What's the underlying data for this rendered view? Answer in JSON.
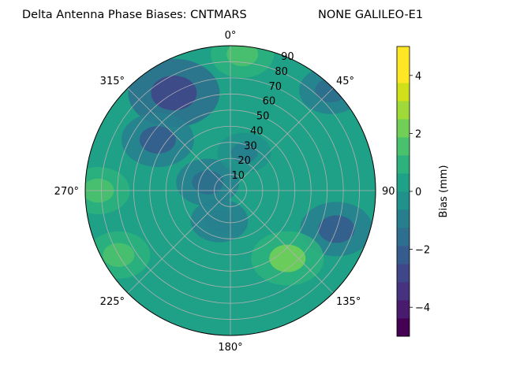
{
  "chart_data": {
    "type": "polar-contour",
    "title": "Delta Antenna Phase Biases: CNTMARS",
    "subtitle": "NONE GALILEO-E1",
    "angular_ticks": [
      {
        "deg": 0,
        "label": "0°"
      },
      {
        "deg": 45,
        "label": "45°"
      },
      {
        "deg": 90,
        "label": "90"
      },
      {
        "deg": 135,
        "label": "135°"
      },
      {
        "deg": 180,
        "label": "180°"
      },
      {
        "deg": 225,
        "label": "225°"
      },
      {
        "deg": 270,
        "label": "270°"
      },
      {
        "deg": 315,
        "label": "315°"
      }
    ],
    "radial_range": [
      0,
      90
    ],
    "radial_ticks": [
      10,
      20,
      30,
      40,
      50,
      60,
      70,
      80,
      90
    ],
    "grid": true,
    "colorbar": {
      "label": "Bias (mm)",
      "range": [
        -5,
        5
      ],
      "ticks": [
        -4,
        -2,
        0,
        2,
        4
      ],
      "levels": [
        -5,
        -4.375,
        -3.75,
        -3.125,
        -2.5,
        -1.875,
        -1.25,
        -0.625,
        0,
        0.625,
        1.25,
        1.875,
        2.5,
        3.125,
        3.75,
        4.375,
        5
      ],
      "colors": [
        "#440154",
        "#481b6d",
        "#46327e",
        "#3f4788",
        "#365c8d",
        "#2e6e8e",
        "#277f8e",
        "#21918c",
        "#1fa187",
        "#2db27d",
        "#4ac16d",
        "#71cf57",
        "#a0da39",
        "#d0e11c",
        "#fde725",
        "#fde725"
      ]
    },
    "field_regions": [
      {
        "azimuth": 330,
        "elevation": 70,
        "value": -3.0
      },
      {
        "azimuth": 305,
        "elevation": 55,
        "value": -2.0
      },
      {
        "azimuth": 200,
        "elevation": 20,
        "value": -1.2
      },
      {
        "azimuth": 290,
        "elevation": 15,
        "value": -1.5
      },
      {
        "azimuth": 20,
        "elevation": 25,
        "value": -1.0
      },
      {
        "azimuth": 110,
        "elevation": 70,
        "value": -2.0
      },
      {
        "azimuth": 270,
        "elevation": 82,
        "value": 1.5
      },
      {
        "azimuth": 240,
        "elevation": 80,
        "value": 1.5
      },
      {
        "azimuth": 140,
        "elevation": 55,
        "value": 2.0
      },
      {
        "azimuth": 5,
        "elevation": 85,
        "value": 1.5
      },
      {
        "azimuth": 45,
        "elevation": 88,
        "value": -1.5
      }
    ]
  }
}
